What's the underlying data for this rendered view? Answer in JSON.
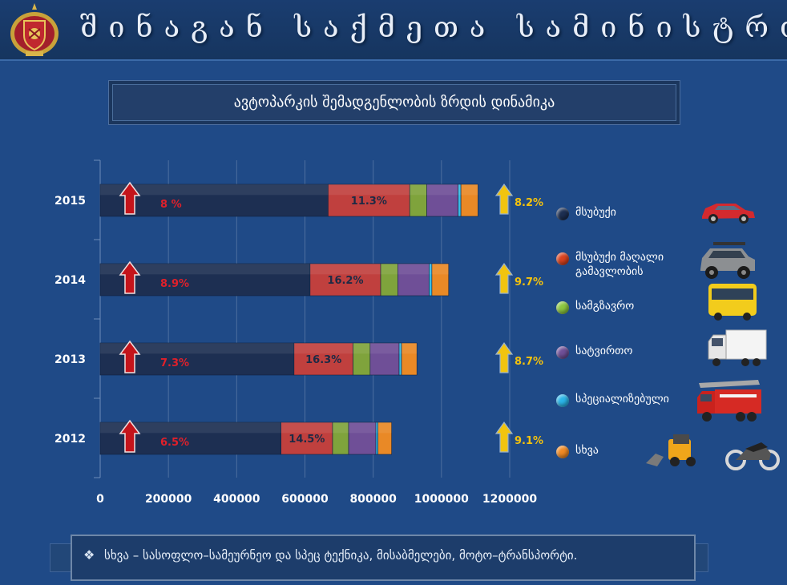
{
  "header": {
    "ministry_name": "შინაგან საქმეთა სამინისტრო",
    "emblem_icon": "georgian-coat-of-arms-icon"
  },
  "chart_data": {
    "type": "bar",
    "orientation": "horizontal",
    "stacked": true,
    "title": "ავტოპარკის შემადგენლობის ზრდის დინამიკა",
    "categories": [
      "2015",
      "2014",
      "2013",
      "2012"
    ],
    "xlim": [
      0,
      1200000
    ],
    "xticks": [
      0,
      200000,
      400000,
      600000,
      800000,
      1000000,
      1200000
    ],
    "grid": "vertical",
    "legend_position": "right",
    "series": [
      {
        "name": "მსუბუქი",
        "color": "#1d2f52",
        "values": [
          668000,
          615000,
          568000,
          530000
        ],
        "labels": [
          "",
          "",
          "",
          ""
        ]
      },
      {
        "name": "მსუბუქი მაღალი გამავლობის",
        "color": "#c0403e",
        "values": [
          239000,
          207000,
          173000,
          151000
        ],
        "labels": [
          "11.3%",
          "16.2%",
          "16.3%",
          "14.5%"
        ]
      },
      {
        "name": "სამგზავრო",
        "color": "#7fa33c",
        "values": [
          50000,
          50000,
          50000,
          47000
        ],
        "labels": [
          "",
          "",
          "",
          ""
        ]
      },
      {
        "name": "სატვირთო",
        "color": "#6f4f97",
        "values": [
          92000,
          92000,
          85000,
          80000
        ],
        "labels": [
          "",
          "",
          "",
          ""
        ]
      },
      {
        "name": "სპეციალიზებული",
        "color": "#38bde6",
        "values": [
          8000,
          8000,
          7000,
          6000
        ],
        "labels": [
          "",
          "",
          "",
          ""
        ]
      },
      {
        "name": "სხვა",
        "color": "#e98926",
        "values": [
          50000,
          49000,
          45000,
          40000
        ],
        "labels": [
          "",
          "",
          "",
          ""
        ]
      }
    ],
    "growth_red": [
      "8 %",
      "8.9%",
      "7.3%",
      "6.5%"
    ],
    "growth_yellow": [
      "8.2%",
      "9.7%",
      "8.7%",
      "9.1%"
    ]
  },
  "legend": [
    {
      "label": "მსუბუქი",
      "color": "#1d2f52",
      "icon": "passenger-car-icon"
    },
    {
      "label": "მსუბუქი მაღალი გამავლობის",
      "color": "#d9421f",
      "icon": "suv-icon"
    },
    {
      "label": "სამგზავრო",
      "color": "#8cc63f",
      "icon": "bus-icon"
    },
    {
      "label": "სატვირთო",
      "color": "#6f4f97",
      "icon": "truck-icon"
    },
    {
      "label": "სპეციალიზებული",
      "color": "#2bb5e8",
      "icon": "fire-truck-icon"
    },
    {
      "label": "სხვა",
      "color": "#f08a24",
      "icon": "loader-and-motorcycle-icon"
    }
  ],
  "footnote": {
    "bullet": "❖",
    "text": "სხვა – სასოფლო–სამეურნეო და სპეც ტექნიკა, მისაბმელები, მოტო–ტრანსპორტი."
  }
}
